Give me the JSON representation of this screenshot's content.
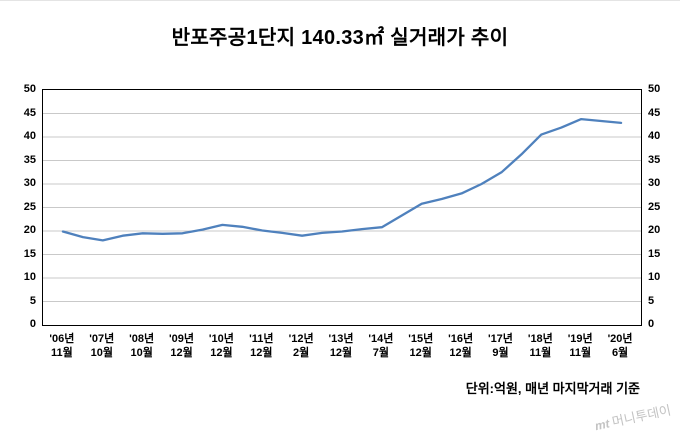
{
  "title": "반포주공1단지 140.33㎡ 실거래가 추이",
  "footer_note": "단위:억원, 매년 마지막거래 기준",
  "watermark": {
    "logo": "mt",
    "name": "머니투데이"
  },
  "chart_data": {
    "type": "line",
    "title": "반포주공1단지 140.33㎡ 실거래가 추이",
    "unit_note": "단위:억원, 매년 마지막거래 기준",
    "line_color": "#4f81bd",
    "grid_color": "#c9c9c9",
    "ylim": [
      0,
      50
    ],
    "yticks": [
      0,
      5,
      10,
      15,
      20,
      25,
      30,
      35,
      40,
      45,
      50
    ],
    "grid": true,
    "legend": "none",
    "categories": [
      "'06년\n11월",
      "'07년\n10월",
      "'08년\n10월",
      "'09년\n12월",
      "'10년\n12월",
      "'11년\n12월",
      "'12년\n2월",
      "'13년\n12월",
      "'14년\n7월",
      "'15년\n12월",
      "'16년\n12월",
      "'17년\n9월",
      "'18년\n11월",
      "'19년\n11월",
      "'20년\n6월"
    ],
    "values": [
      20,
      18,
      19.5,
      19.5,
      21.3,
      20,
      19,
      20,
      21,
      25.8,
      28,
      32.5,
      40.5,
      43.8,
      43
    ],
    "points": [
      [
        0,
        19.9
      ],
      [
        0.5,
        18.7
      ],
      [
        1,
        18
      ],
      [
        1.5,
        19
      ],
      [
        2,
        19.5
      ],
      [
        2.5,
        19.4
      ],
      [
        3,
        19.5
      ],
      [
        3.5,
        20.3
      ],
      [
        4,
        21.3
      ],
      [
        4.5,
        20.9
      ],
      [
        5,
        20.1
      ],
      [
        5.5,
        19.6
      ],
      [
        6,
        19
      ],
      [
        6.5,
        19.6
      ],
      [
        7,
        19.9
      ],
      [
        7.5,
        20.4
      ],
      [
        8,
        20.8
      ],
      [
        8.5,
        23.3
      ],
      [
        9,
        25.8
      ],
      [
        9.5,
        26.8
      ],
      [
        10,
        28
      ],
      [
        10.5,
        30
      ],
      [
        11,
        32.5
      ],
      [
        11.5,
        36.3
      ],
      [
        12,
        40.5
      ],
      [
        12.5,
        42
      ],
      [
        13,
        43.8
      ],
      [
        13.5,
        43.4
      ],
      [
        14,
        43
      ]
    ]
  }
}
